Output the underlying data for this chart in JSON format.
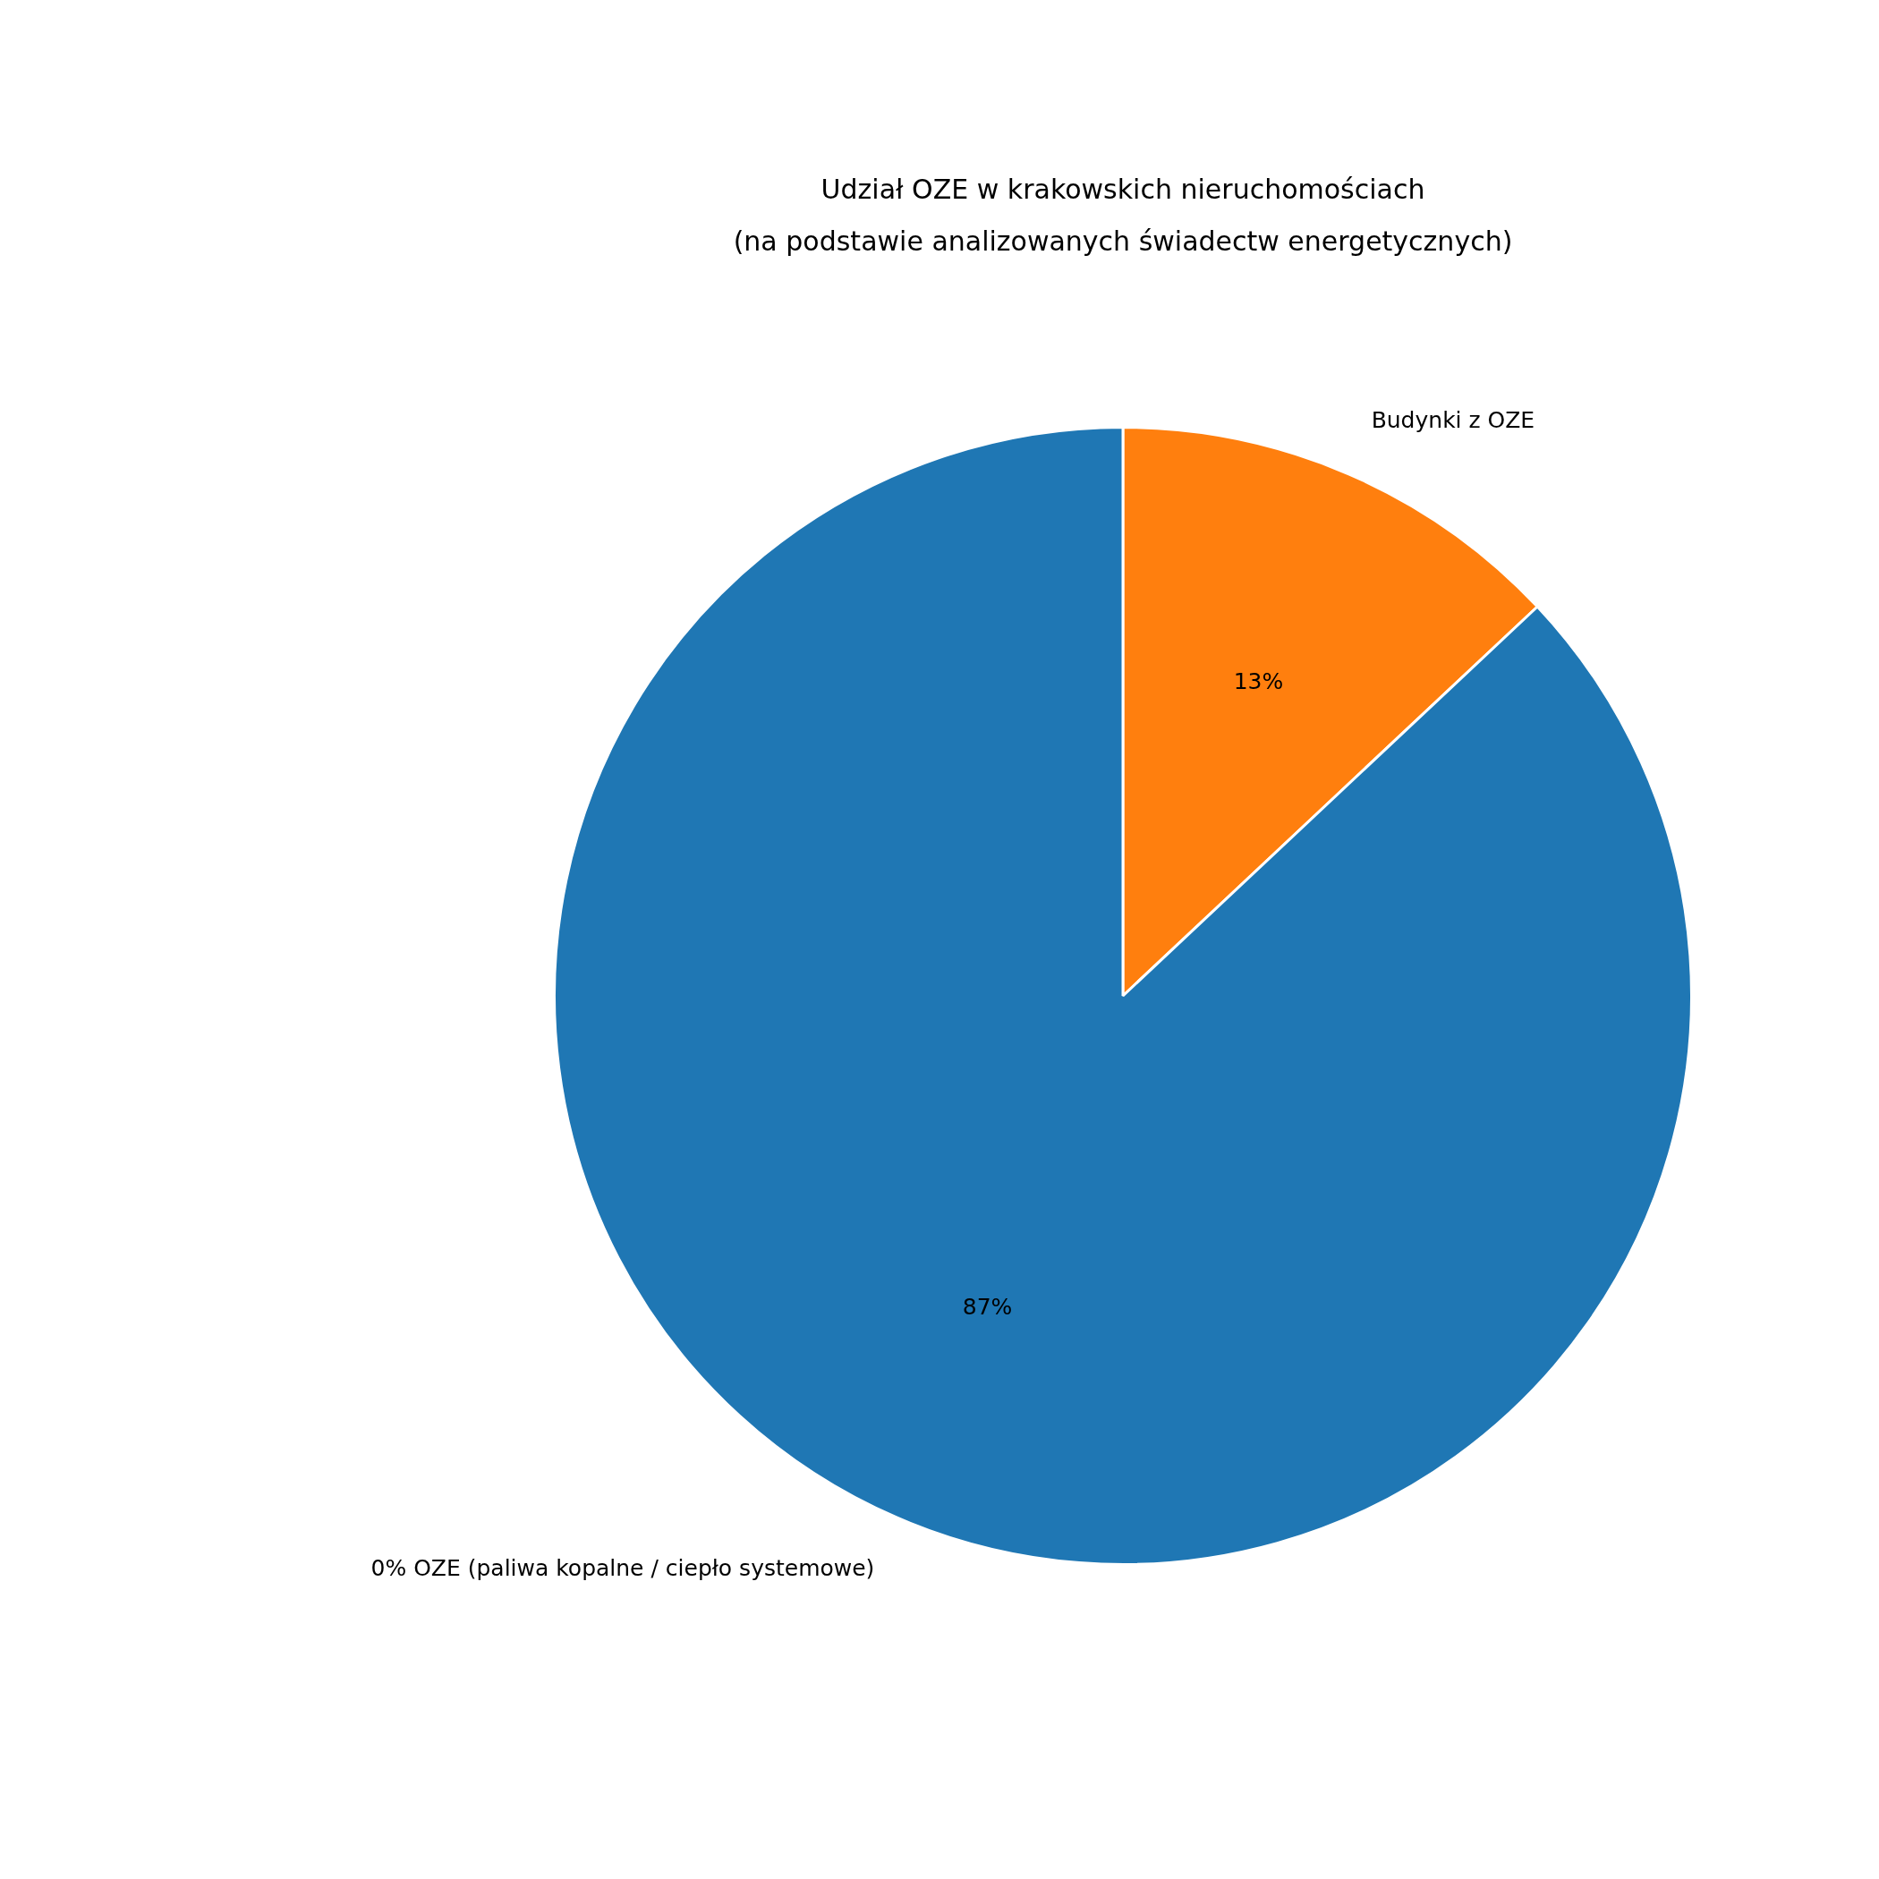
{
  "chart_data": {
    "type": "pie",
    "title": "Udział OZE w krakowskich nieruchomościach\n(na podstawie analizowanych świadectw energetycznych)",
    "categories": [
      "Budynki z OZE",
      "0% OZE (paliwa kopalne / ciepło systemowe)"
    ],
    "values": [
      13,
      87
    ],
    "value_labels": [
      "13%",
      "87%"
    ],
    "colors": [
      "#ff7f0e",
      "#1f77b4"
    ],
    "legend": false
  }
}
